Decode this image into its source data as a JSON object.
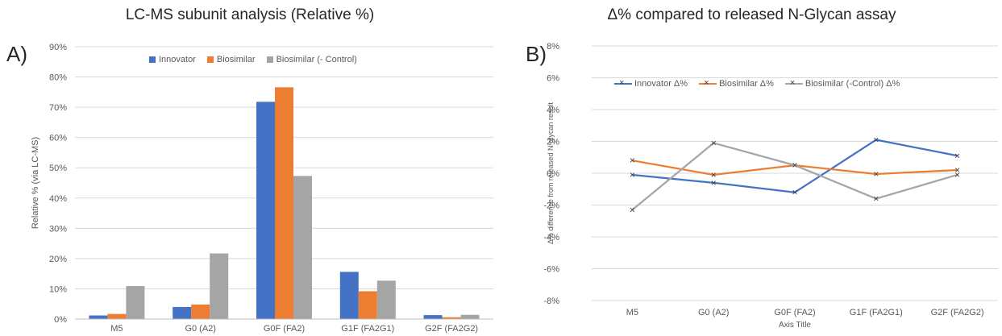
{
  "chart_data": [
    {
      "type": "bar",
      "label": "A)",
      "title": "LC-MS subunit analysis (Relative %)",
      "xlabel": "",
      "ylabel": "Relative % (via LC-MS)",
      "categories": [
        "M5",
        "G0 (A2)",
        "G0F (FA2)",
        "G1F (FA2G1)",
        "G2F (FA2G2)"
      ],
      "series": [
        {
          "name": "Innovator",
          "color": "#4472C4",
          "values": [
            1.2,
            4.0,
            71.8,
            15.6,
            1.3
          ]
        },
        {
          "name": "Biosimilar",
          "color": "#ED7D31",
          "values": [
            1.7,
            4.8,
            76.6,
            9.2,
            0.6
          ]
        },
        {
          "name": "Biosimilar (- Control)",
          "color": "#A5A5A5",
          "values": [
            10.9,
            21.7,
            47.3,
            12.7,
            1.4
          ]
        }
      ],
      "ylim": [
        0,
        90
      ],
      "yticks": [
        "0%",
        "10%",
        "20%",
        "30%",
        "40%",
        "50%",
        "60%",
        "70%",
        "80%",
        "90%"
      ],
      "grid": true,
      "legend": "top"
    },
    {
      "type": "line",
      "label": "B)",
      "title": "Δ% compared to released N-Glycan assay",
      "xlabel": "Axis Title",
      "ylabel": "Δ% difference from released N-glycan result",
      "categories": [
        "M5",
        "G0 (A2)",
        "G0F (FA2)",
        "G1F (FA2G1)",
        "G2F (FA2G2)"
      ],
      "series": [
        {
          "name": "Innovator Δ%",
          "color": "#4472C4",
          "values": [
            -0.1,
            -0.6,
            -1.2,
            2.1,
            1.1
          ]
        },
        {
          "name": "Biosimilar Δ%",
          "color": "#ED7D31",
          "values": [
            0.8,
            -0.1,
            0.5,
            -0.05,
            0.2
          ]
        },
        {
          "name": "Biosimilar (-Control) Δ%",
          "color": "#A5A5A5",
          "values": [
            -2.3,
            1.9,
            0.5,
            -1.6,
            -0.1
          ]
        }
      ],
      "marker": "×",
      "ylim": [
        -8,
        8
      ],
      "yticks": [
        "-8%",
        "-6%",
        "-4%",
        "-2%",
        "0%",
        "2%",
        "4%",
        "6%",
        "8%"
      ],
      "grid": true,
      "legend": "top"
    }
  ]
}
